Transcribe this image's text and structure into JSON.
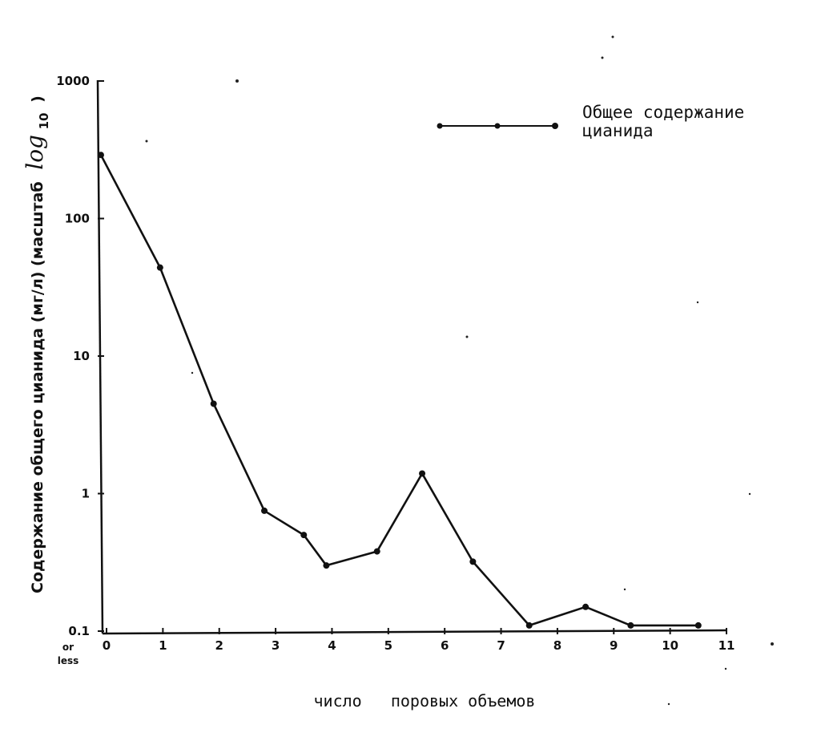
{
  "chart_data": {
    "type": "line",
    "title": "",
    "xlabel": "число   поровых объемов",
    "ylabel": "Содержание общего цианида (мг/л) (масштаб",
    "ylabel_log": "log",
    "ylabel_log_sub": "10",
    "ylabel_close": ")",
    "y_scale": "log",
    "xlim": [
      0,
      11
    ],
    "ylim": [
      0.1,
      1000
    ],
    "x_ticks": [
      "0",
      "1",
      "2",
      "3",
      "4",
      "5",
      "6",
      "7",
      "8",
      "9",
      "10",
      "11"
    ],
    "y_ticks": [
      {
        "value": 1000,
        "label": "1000"
      },
      {
        "value": 100,
        "label": "100"
      },
      {
        "value": 10,
        "label": "10"
      },
      {
        "value": 1,
        "label": "1"
      },
      {
        "value": 0.1,
        "label": "0.1"
      }
    ],
    "y_tick_extra": [
      "or",
      "less"
    ],
    "grid": false,
    "legend_position": "top-right",
    "series": [
      {
        "name": "Общее содержание цианида",
        "name_lines": [
          "Общее содержание",
          "цианида"
        ],
        "color": "#111111",
        "x": [
          -0.1,
          0.95,
          1.9,
          2.8,
          3.5,
          3.9,
          4.8,
          5.6,
          6.5,
          7.5,
          8.5,
          9.3,
          10.5
        ],
        "y": [
          290,
          44,
          4.5,
          0.75,
          0.5,
          0.3,
          0.38,
          1.4,
          0.32,
          0.11,
          0.15,
          0.11,
          0.11
        ]
      }
    ]
  }
}
